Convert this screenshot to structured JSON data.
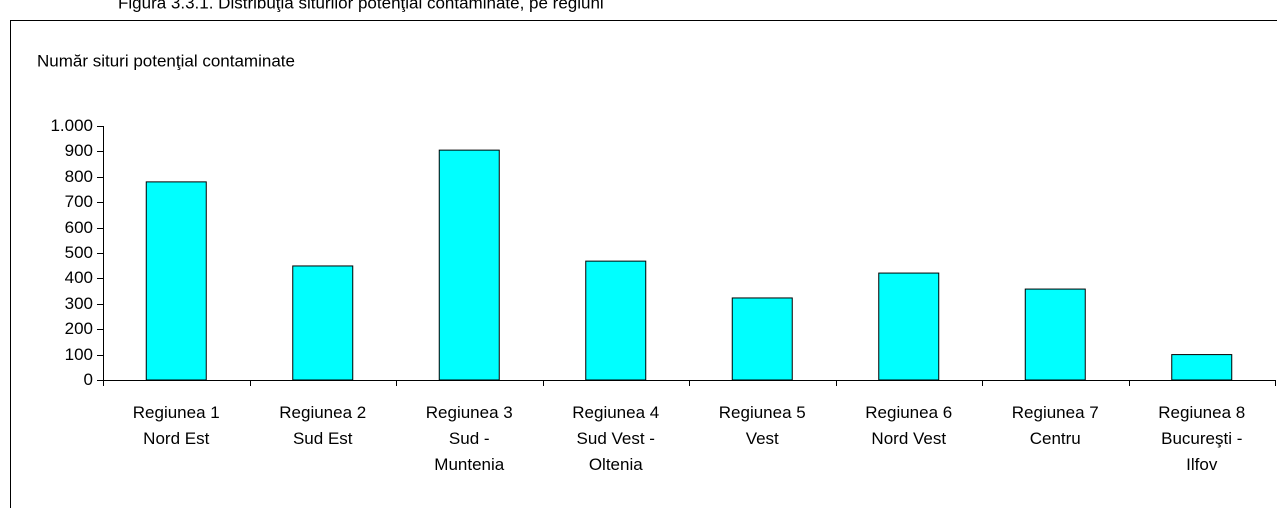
{
  "chart_data": {
    "type": "bar",
    "title": "Figura 3.3.1. Distribuţia siturilor potenţial contaminate, pe regiuni",
    "y_label": "Număr situri potenţial contaminate",
    "categories": [
      "Regiunea 1\nNord Est",
      "Regiunea 2\nSud Est",
      "Regiunea 3\nSud -\nMuntenia",
      "Regiunea 4\nSud Vest -\nOltenia",
      "Regiunea 5\nVest",
      "Regiunea 6\nNord Vest",
      "Regiunea 7\nCentru",
      "Regiunea 8\nBucureşti -\nIlfov"
    ],
    "values": [
      780,
      449,
      905,
      468,
      323,
      421,
      358,
      100
    ],
    "color": "#00ffff",
    "ylim": [
      0,
      1000
    ],
    "yticks": [
      0,
      100,
      200,
      300,
      400,
      500,
      600,
      700,
      800,
      900,
      {
        "value": 1000,
        "label": "1.000"
      }
    ],
    "grid": false
  }
}
